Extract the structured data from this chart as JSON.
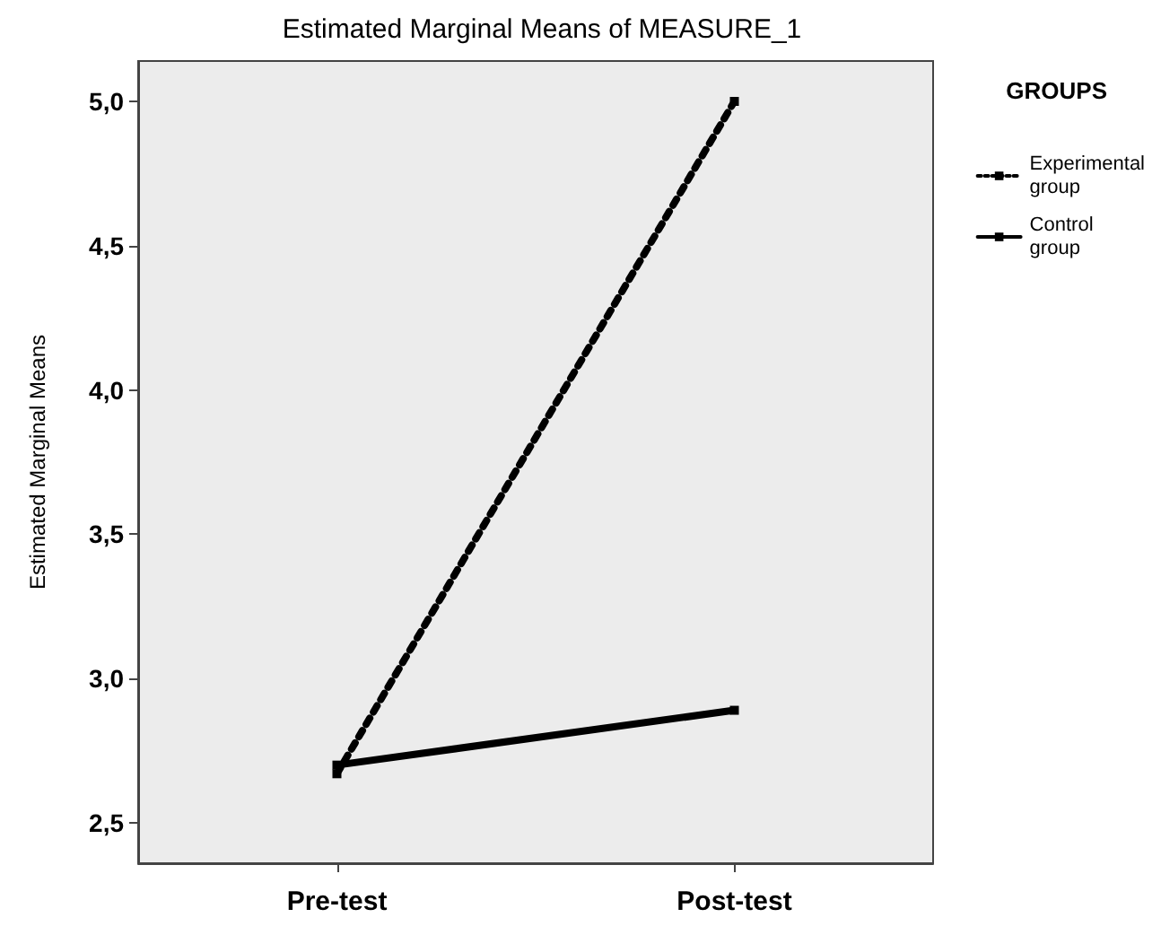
{
  "chart_data": {
    "type": "line",
    "title": "Estimated Marginal Means of MEASURE_1",
    "ylabel": "Estimated Marginal Means",
    "legend_title": "GROUPS",
    "categories": [
      "Pre-test",
      "Post-test"
    ],
    "series": [
      {
        "name": "Experimental group",
        "color": "#000000",
        "values": [
          2.67,
          5.0
        ],
        "line_style": "dotted"
      },
      {
        "name": "Control group",
        "color": "#000000",
        "values": [
          2.7,
          2.89
        ],
        "line_style": "solid"
      }
    ],
    "ylim": [
      2.36,
      5.14
    ],
    "yticks": [
      {
        "value": 2.5,
        "label": "2,5"
      },
      {
        "value": 3.0,
        "label": "3,0"
      },
      {
        "value": 3.5,
        "label": "3,5"
      },
      {
        "value": 4.0,
        "label": "4,0"
      },
      {
        "value": 4.5,
        "label": "4,5"
      },
      {
        "value": 5.0,
        "label": "5,0"
      }
    ],
    "grid": false,
    "legend": "right",
    "marker": "square"
  }
}
